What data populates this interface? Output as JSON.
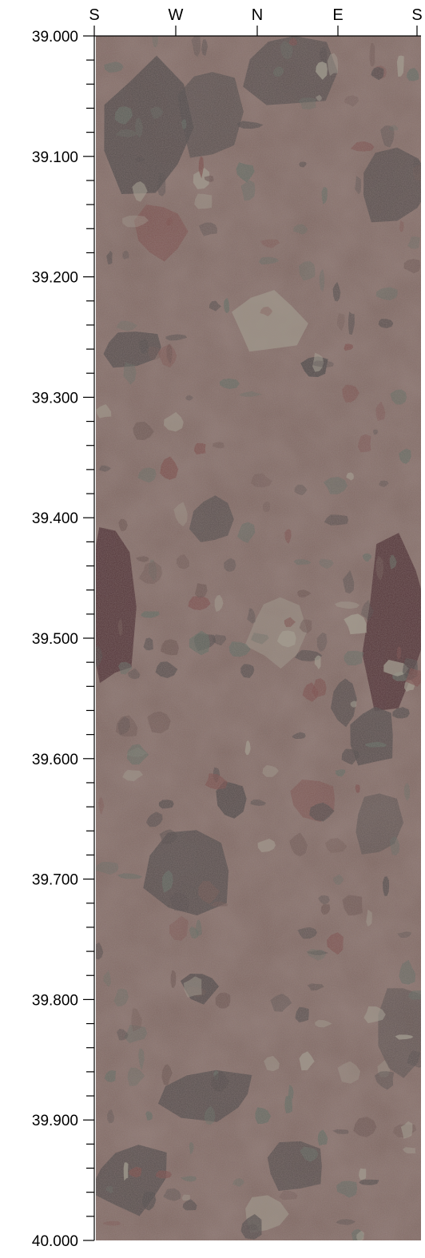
{
  "orientation_labels": [
    "S",
    "W",
    "N",
    "E",
    "S"
  ],
  "depth_axis": {
    "min": 39.0,
    "max": 40.0,
    "major_step": 0.1,
    "minor_step": 0.02,
    "labels": [
      "39.000",
      "39.100",
      "39.200",
      "39.300",
      "39.400",
      "39.500",
      "39.600",
      "39.700",
      "39.800",
      "39.900",
      "40.000"
    ]
  },
  "colors": {
    "matrix": "#7d6660",
    "matrix_dark": "#6a5450",
    "clast_dark": "#4d4848",
    "clast_green": "#5f6b62",
    "clast_light": "#a7a595",
    "clast_red": "#7a4a48",
    "clast_purple": "#4e3034"
  }
}
